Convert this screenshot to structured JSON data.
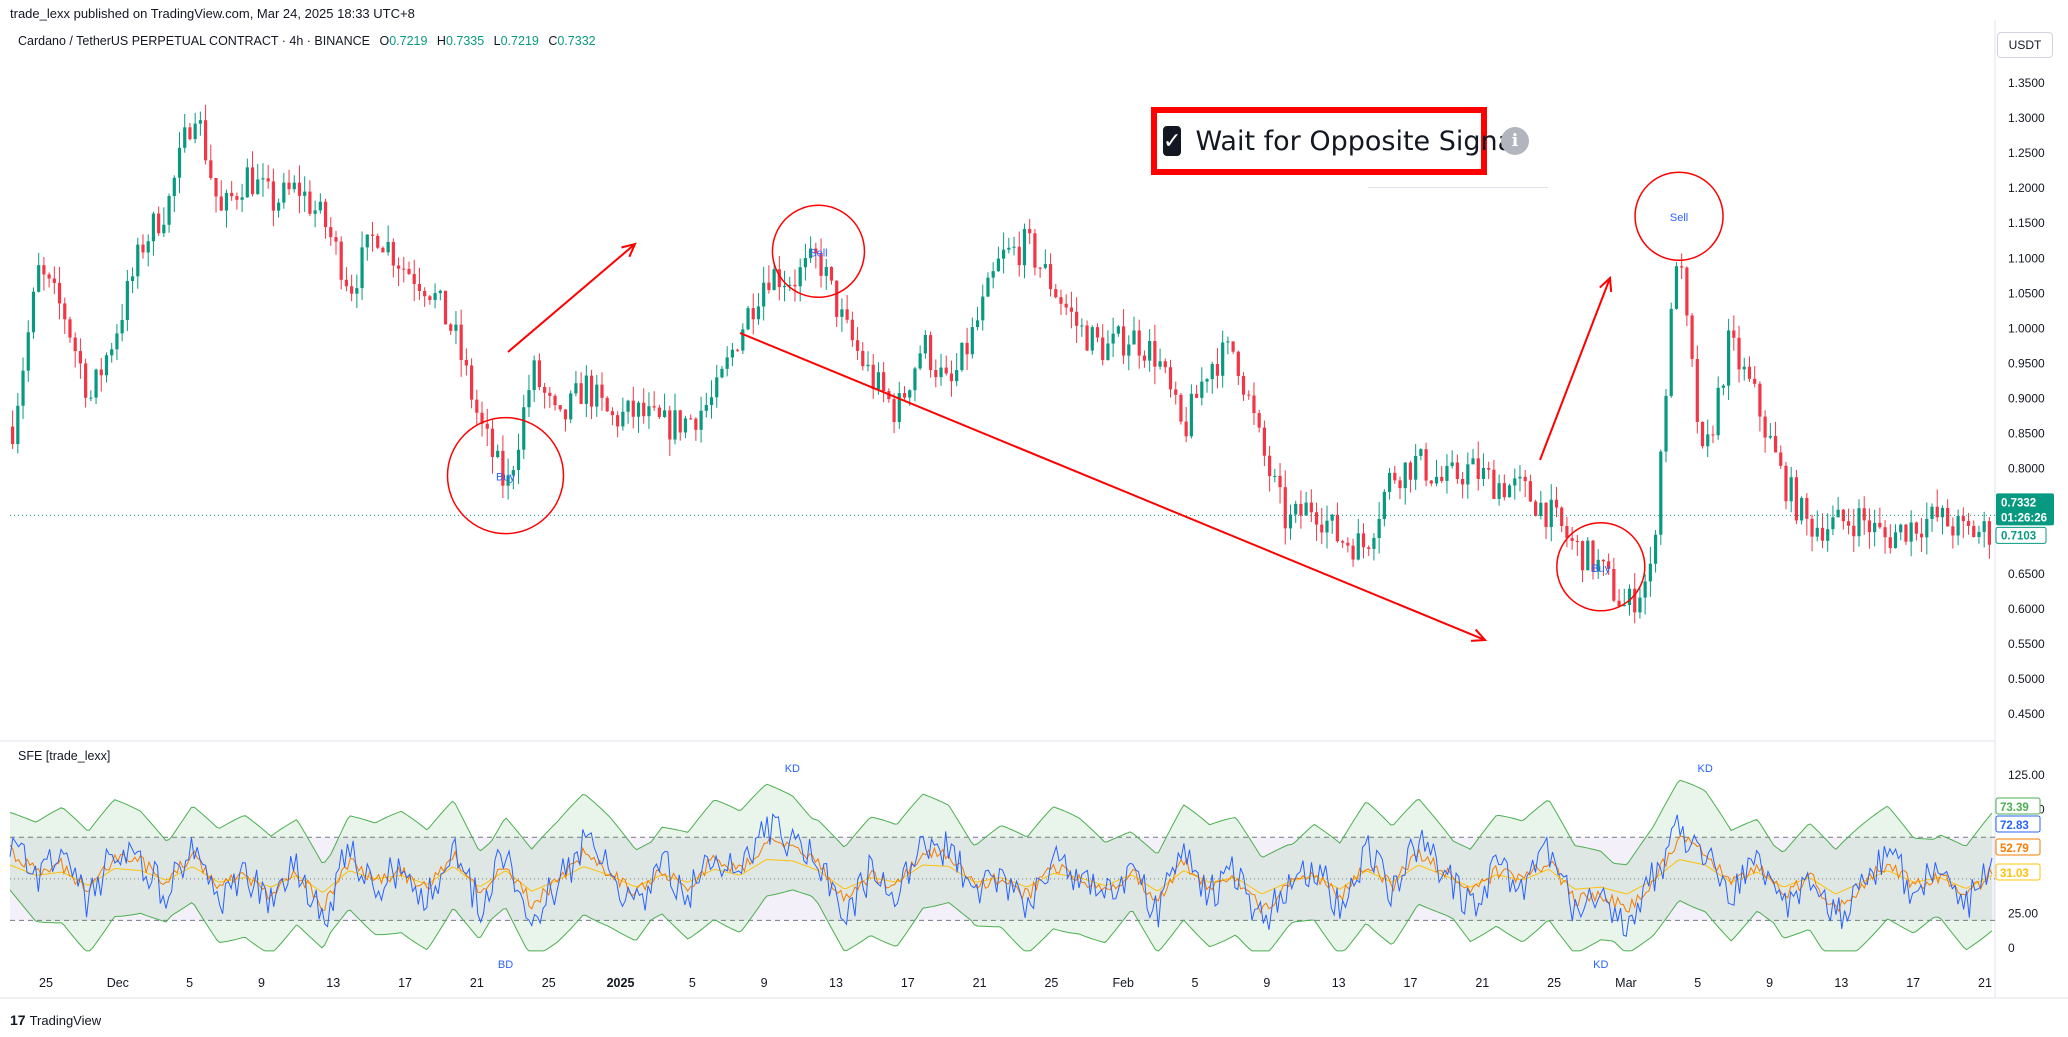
{
  "header": {
    "published": "trade_lexx published on TradingView.com, Mar 24, 2025 18:33 UTC+8",
    "symbol": "Cardano / TetherUS PERPETUAL CONTRACT · 4h · BINANCE",
    "ohlc": {
      "o_label": "O",
      "o": "0.7219",
      "h_label": "H",
      "h": "0.7335",
      "l_label": "L",
      "l": "0.7219",
      "c_label": "C",
      "c": "0.7332"
    },
    "currency": "USDT"
  },
  "callout": {
    "text": "Wait for Opposite Signal"
  },
  "indicator": {
    "label": "SFE [trade_lexx]"
  },
  "footer": {
    "brand": "TradingView",
    "brand_mark": "17"
  },
  "colors": {
    "up": "#089981",
    "down": "#f23645",
    "signal": "#2962ff",
    "arrow": "#ff0000",
    "band": "#4caf50",
    "k": "#2962ff",
    "d": "#f57c00",
    "ma": "#ffc107"
  },
  "chart_data": [
    {
      "type": "candlestick",
      "title": "Cardano / TetherUS PERPETUAL CONTRACT · 4h · BINANCE",
      "ylim": [
        0.42,
        1.39
      ],
      "yticks": [
        "1.3500",
        "1.3000",
        "1.2500",
        "1.2000",
        "1.1500",
        "1.1000",
        "1.0500",
        "1.0000",
        "0.9500",
        "0.9000",
        "0.8500",
        "0.8000",
        "0.7500",
        "0.7000",
        "0.6500",
        "0.6000",
        "0.5500",
        "0.5000",
        "0.4500"
      ],
      "xticks": [
        "25",
        "Dec",
        "5",
        "9",
        "13",
        "17",
        "21",
        "25",
        "2025",
        "5",
        "9",
        "13",
        "17",
        "21",
        "25",
        "Feb",
        "5",
        "9",
        "13",
        "17",
        "21",
        "25",
        "Mar",
        "5",
        "9",
        "13",
        "17",
        "21"
      ],
      "price_path": [
        0.86,
        1.08,
        1.02,
        0.9,
        1.0,
        1.12,
        1.18,
        1.32,
        1.16,
        1.22,
        1.18,
        1.2,
        1.15,
        1.06,
        1.14,
        1.09,
        1.06,
        0.99,
        0.86,
        0.77,
        0.94,
        0.86,
        0.92,
        0.87,
        0.88,
        0.86,
        0.87,
        0.9,
        1.0,
        1.08,
        1.07,
        1.1,
        1.0,
        0.93,
        0.88,
        0.98,
        0.91,
        1.0,
        1.1,
        1.12,
        1.06,
        1.0,
        0.97,
        0.99,
        0.96,
        0.85,
        0.95,
        0.97,
        0.83,
        0.72,
        0.75,
        0.7,
        0.69,
        0.79,
        0.81,
        0.78,
        0.8,
        0.78,
        0.77,
        0.74,
        0.69,
        0.66,
        0.6,
        0.65,
        1.12,
        0.8,
        0.98,
        0.9,
        0.79,
        0.72,
        0.72,
        0.73,
        0.7,
        0.72,
        0.73,
        0.71,
        0.71
      ],
      "current_price": "0.7332",
      "countdown": "01:26:26",
      "ref_price": "0.7103",
      "signals": [
        {
          "label": "Buy",
          "x_index": 19,
          "price": 0.79
        },
        {
          "label": "Sell",
          "x_index": 31,
          "price": 1.11
        },
        {
          "label": "Buy",
          "x_index": 61,
          "price": 0.66
        },
        {
          "label": "Sell",
          "x_index": 64,
          "price": 1.16
        }
      ],
      "annotations": [
        "circle-buy-1",
        "circle-sell-1",
        "circle-buy-2",
        "circle-sell-2",
        "arrow-up-1",
        "arrow-down-trend",
        "arrow-up-2"
      ]
    },
    {
      "type": "line",
      "title": "SFE [trade_lexx]",
      "ylim": [
        -10,
        130
      ],
      "yticks": [
        "125.00",
        "100.00",
        "75.00",
        "25.00",
        "0"
      ],
      "levels": {
        "upper": 80,
        "lower": 20
      },
      "badges": [
        {
          "value": "73.39",
          "color": "#4caf50"
        },
        {
          "value": "72.83",
          "color": "#2962ff"
        },
        {
          "value": "52.79",
          "color": "#f57c00"
        },
        {
          "value": "31.03",
          "color": "#ffc107"
        }
      ],
      "signal_labels": [
        {
          "label": "KD",
          "x_index": 30,
          "pos": "top"
        },
        {
          "label": "KD",
          "x_index": 65,
          "pos": "top"
        },
        {
          "label": "BD",
          "x_index": 19,
          "pos": "bottom"
        },
        {
          "label": "KD",
          "x_index": 61,
          "pos": "bottom"
        }
      ],
      "series": [
        {
          "name": "K",
          "values": [
            80,
            45,
            70,
            30,
            75,
            60,
            40,
            78,
            35,
            55,
            30,
            60,
            20,
            72,
            45,
            58,
            35,
            75,
            30,
            70,
            25,
            45,
            75,
            55,
            30,
            60,
            40,
            70,
            50,
            85,
            78,
            60,
            25,
            55,
            40,
            78,
            70,
            40,
            55,
            30,
            62,
            50,
            35,
            60,
            25,
            70,
            40,
            55,
            20,
            45,
            60,
            30,
            70,
            40,
            78,
            55,
            30,
            60,
            45,
            70,
            28,
            35,
            20,
            50,
            85,
            70,
            40,
            65,
            30,
            55,
            20,
            45,
            70,
            40,
            55,
            30,
            60
          ]
        },
        {
          "name": "D",
          "values": [
            70,
            55,
            60,
            40,
            65,
            62,
            48,
            68,
            45,
            52,
            38,
            55,
            30,
            62,
            50,
            55,
            42,
            68,
            38,
            62,
            32,
            48,
            68,
            55,
            38,
            56,
            45,
            64,
            55,
            78,
            76,
            62,
            35,
            52,
            45,
            70,
            68,
            45,
            52,
            38,
            58,
            52,
            40,
            56,
            32,
            62,
            45,
            52,
            28,
            45,
            55,
            35,
            62,
            45,
            70,
            55,
            38,
            56,
            48,
            64,
            35,
            38,
            28,
            48,
            78,
            70,
            45,
            60,
            38,
            52,
            28,
            45,
            62,
            45,
            52,
            36,
            55
          ]
        }
      ]
    }
  ]
}
